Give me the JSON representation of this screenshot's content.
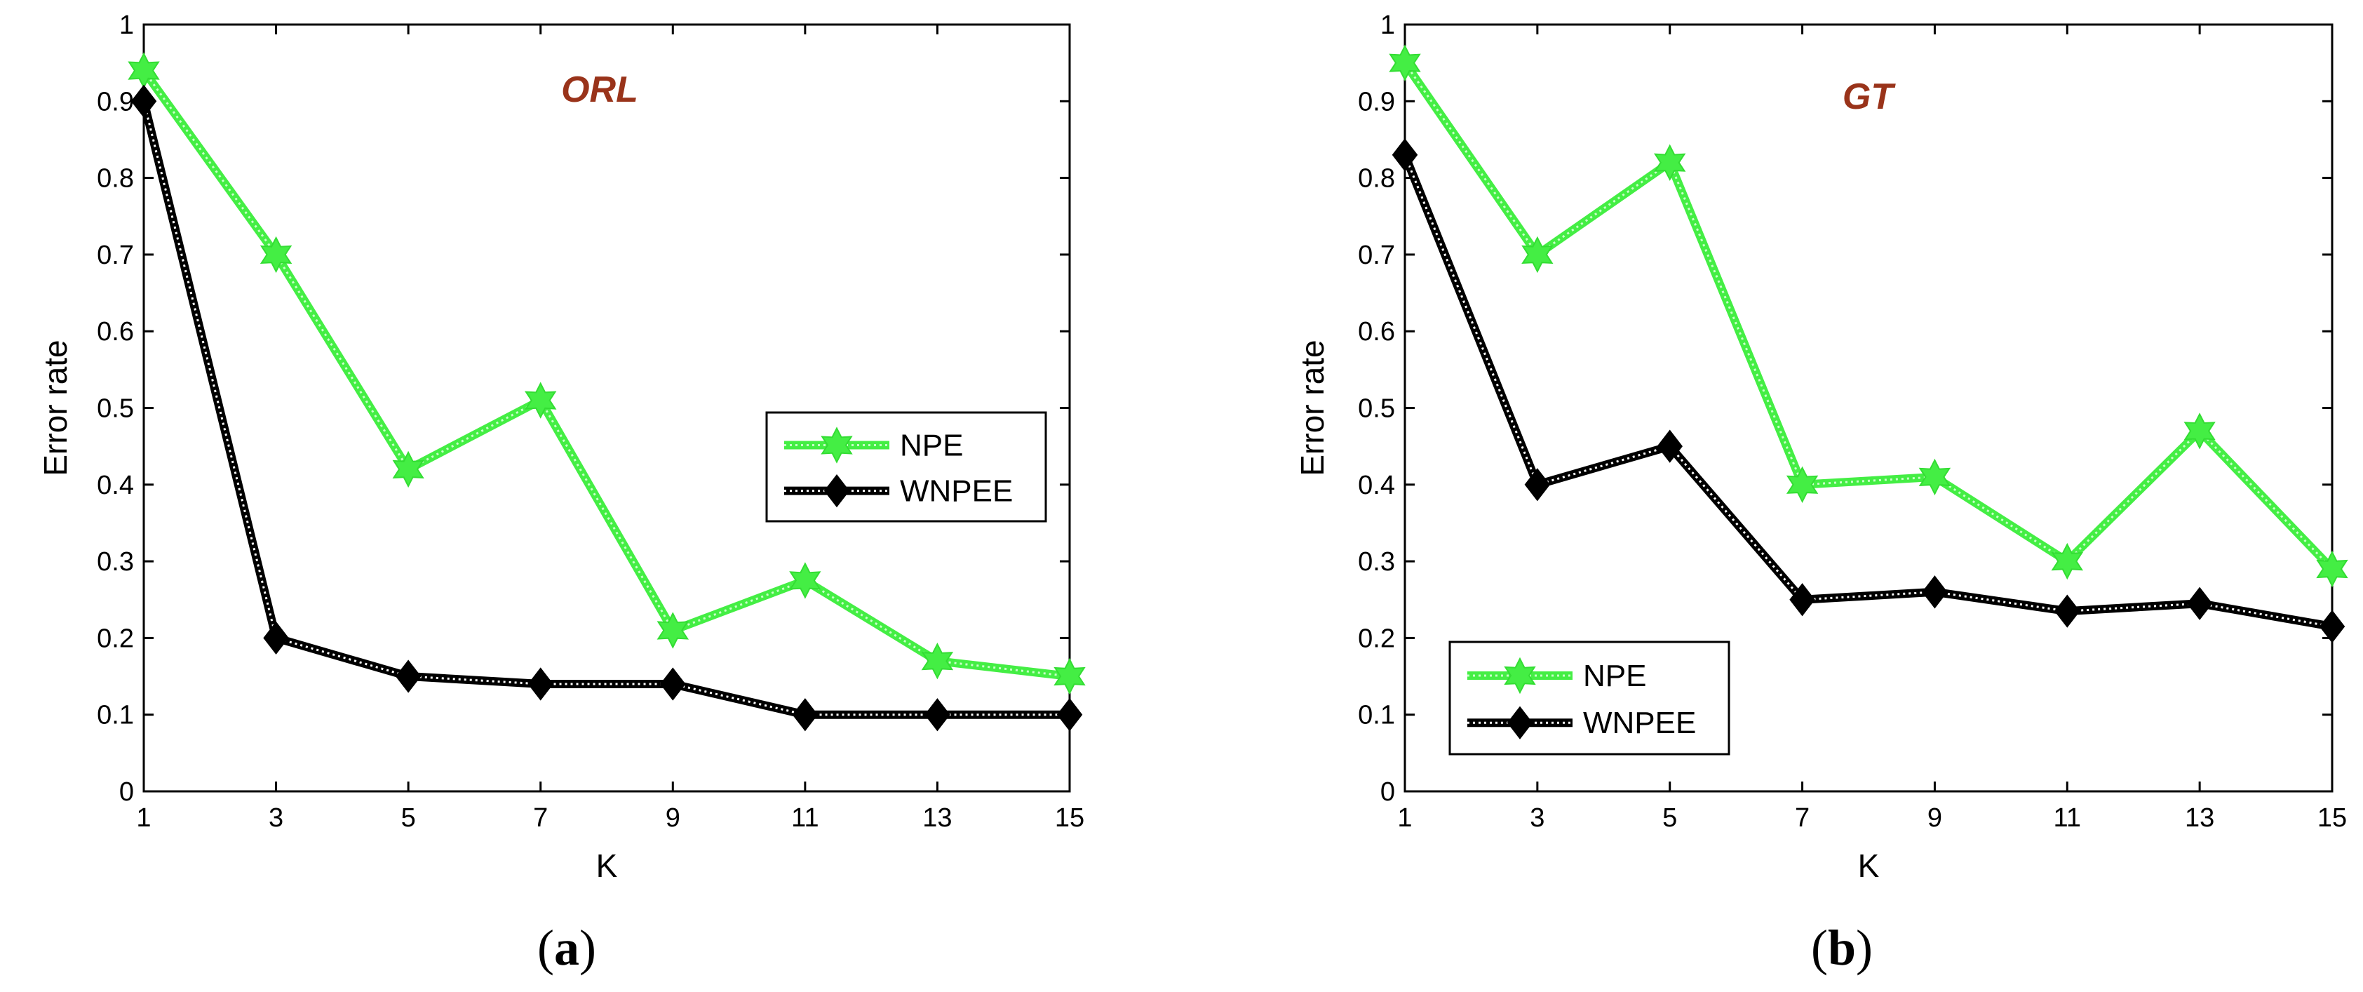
{
  "colors": {
    "npe": "#44ee44",
    "npe_outline": "#33dd33",
    "wnpee": "#000000",
    "title": "#99331a"
  },
  "chart_data": [
    {
      "type": "line",
      "title": "ORL",
      "caption": "a",
      "xlabel": "K",
      "ylabel": "Error rate",
      "x": [
        1,
        3,
        5,
        7,
        9,
        11,
        13,
        15
      ],
      "xlim": [
        1,
        15
      ],
      "ylim": [
        0,
        1
      ],
      "xticks": [
        "1",
        "3",
        "5",
        "7",
        "9",
        "11",
        "13",
        "15"
      ],
      "yticks": [
        "0",
        "0.1",
        "0.2",
        "0.3",
        "0.4",
        "0.5",
        "0.6",
        "0.7",
        "0.8",
        "0.9",
        "1"
      ],
      "legend_position": "right-middle",
      "series": [
        {
          "name": "NPE",
          "marker": "star",
          "values": [
            0.94,
            0.7,
            0.42,
            0.51,
            0.21,
            0.275,
            0.17,
            0.15
          ]
        },
        {
          "name": "WNPEE",
          "marker": "diamond",
          "values": [
            0.9,
            0.2,
            0.15,
            0.14,
            0.14,
            0.1,
            0.1,
            0.1
          ]
        }
      ]
    },
    {
      "type": "line",
      "title": "GT",
      "caption": "b",
      "xlabel": "K",
      "ylabel": "Error rate",
      "x": [
        1,
        3,
        5,
        7,
        9,
        11,
        13,
        15
      ],
      "xlim": [
        1,
        15
      ],
      "ylim": [
        0,
        1
      ],
      "xticks": [
        "1",
        "3",
        "5",
        "7",
        "9",
        "11",
        "13",
        "15"
      ],
      "yticks": [
        "0",
        "0.1",
        "0.2",
        "0.3",
        "0.4",
        "0.5",
        "0.6",
        "0.7",
        "0.8",
        "0.9",
        "1"
      ],
      "legend_position": "bottom-left",
      "series": [
        {
          "name": "NPE",
          "marker": "star",
          "values": [
            0.95,
            0.7,
            0.82,
            0.4,
            0.41,
            0.3,
            0.47,
            0.29
          ]
        },
        {
          "name": "WNPEE",
          "marker": "diamond",
          "values": [
            0.83,
            0.4,
            0.45,
            0.25,
            0.26,
            0.235,
            0.245,
            0.215
          ]
        }
      ]
    }
  ]
}
